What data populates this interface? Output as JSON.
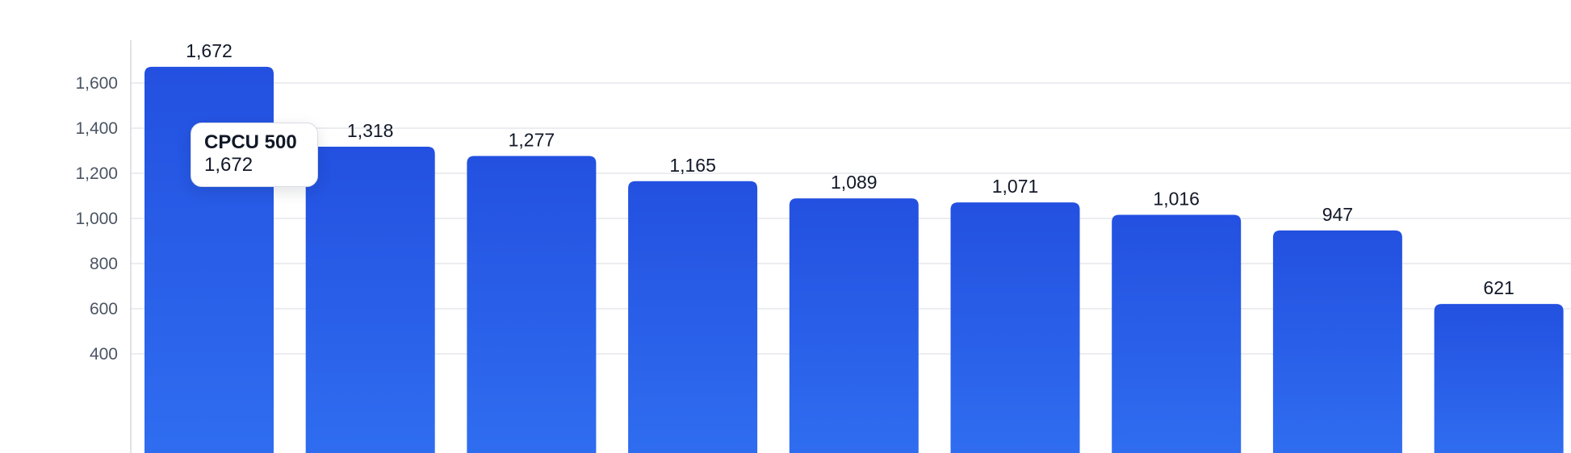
{
  "chart_data": {
    "type": "bar",
    "title": "",
    "xlabel": "",
    "ylabel": "",
    "categories": [
      "CPCU 500",
      "",
      "",
      "",
      "",
      "",
      "",
      "",
      ""
    ],
    "values": [
      1672,
      1318,
      1277,
      1165,
      1089,
      1071,
      1016,
      947,
      621
    ],
    "value_labels": [
      "1,672",
      "1,318",
      "1,277",
      "1,165",
      "1,089",
      "1,071",
      "1,016",
      "947",
      "621"
    ],
    "y_ticks": [
      400,
      600,
      800,
      1000,
      1200,
      1400,
      1600
    ],
    "y_tick_labels": [
      "400",
      "600",
      "800",
      "1,000",
      "1,200",
      "1,400",
      "1,600"
    ],
    "ylim": [
      260,
      1800
    ],
    "grid": true,
    "bar_color_top": "#2350e0",
    "bar_color_bottom": "#2f6df0"
  },
  "tooltip": {
    "title": "CPCU 500",
    "value": "1,672"
  }
}
